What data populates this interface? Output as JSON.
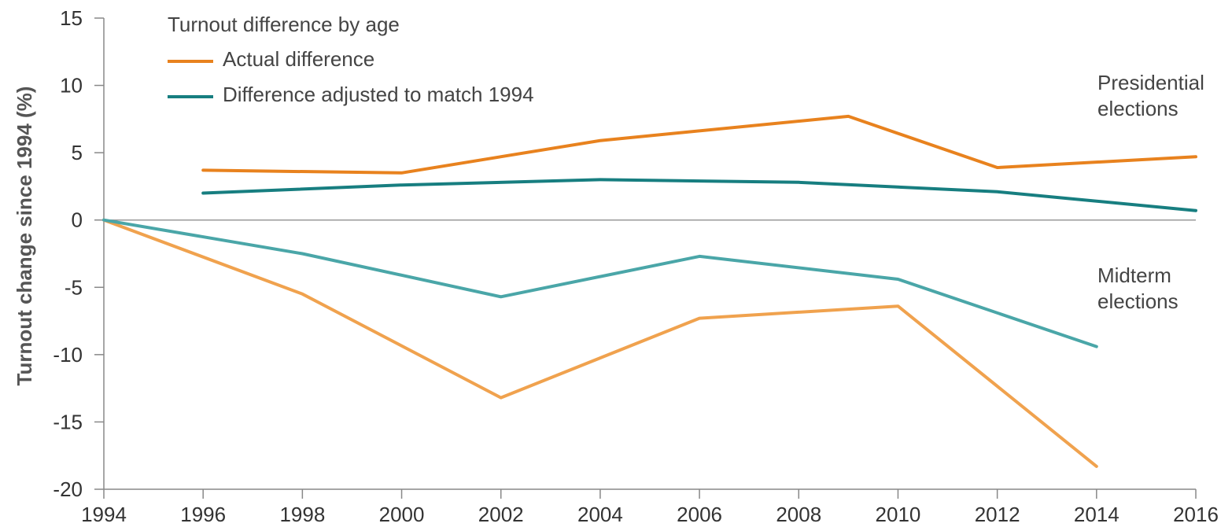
{
  "chart_data": {
    "type": "line",
    "legend_title": "Turnout difference by age",
    "ylabel": "Turnout change since 1994 (%)",
    "xlabel": "",
    "xlim": [
      1994,
      2016
    ],
    "ylim": [
      -20,
      15
    ],
    "x_ticks": [
      1994,
      1996,
      1998,
      2000,
      2002,
      2004,
      2006,
      2008,
      2010,
      2012,
      2014,
      2016
    ],
    "y_ticks": [
      15,
      10,
      5,
      0,
      -5,
      -10,
      -15,
      -20
    ],
    "legend": [
      {
        "label": "Actual difference",
        "color": "#E8821E"
      },
      {
        "label": "Difference adjusted to match 1994",
        "color": "#177E80"
      }
    ],
    "annotations": [
      {
        "lines": [
          "Presidential",
          "elections"
        ]
      },
      {
        "lines": [
          "Midterm",
          "elections"
        ]
      }
    ],
    "series": [
      {
        "group": "presidential",
        "kind": "actual",
        "color": "#E8821E",
        "x": [
          1996,
          2000,
          2004,
          2009,
          2012,
          2016
        ],
        "y": [
          3.7,
          3.5,
          5.9,
          7.7,
          3.9,
          4.7
        ]
      },
      {
        "group": "presidential",
        "kind": "adjusted",
        "color": "#177E80",
        "x": [
          1996,
          2000,
          2004,
          2008,
          2012,
          2016
        ],
        "y": [
          2.0,
          2.6,
          3.0,
          2.8,
          2.1,
          0.7
        ]
      },
      {
        "group": "midterm",
        "kind": "actual",
        "color": "#F0A24E",
        "x": [
          1994,
          1998,
          2002,
          2006,
          2010,
          2014
        ],
        "y": [
          0,
          -5.5,
          -13.2,
          -7.3,
          -6.4,
          -18.3
        ]
      },
      {
        "group": "midterm",
        "kind": "adjusted",
        "color": "#4AA6A8",
        "x": [
          1994,
          1998,
          2002,
          2006,
          2010,
          2014
        ],
        "y": [
          0,
          -2.5,
          -5.7,
          -2.7,
          -4.4,
          -9.4
        ]
      }
    ]
  }
}
